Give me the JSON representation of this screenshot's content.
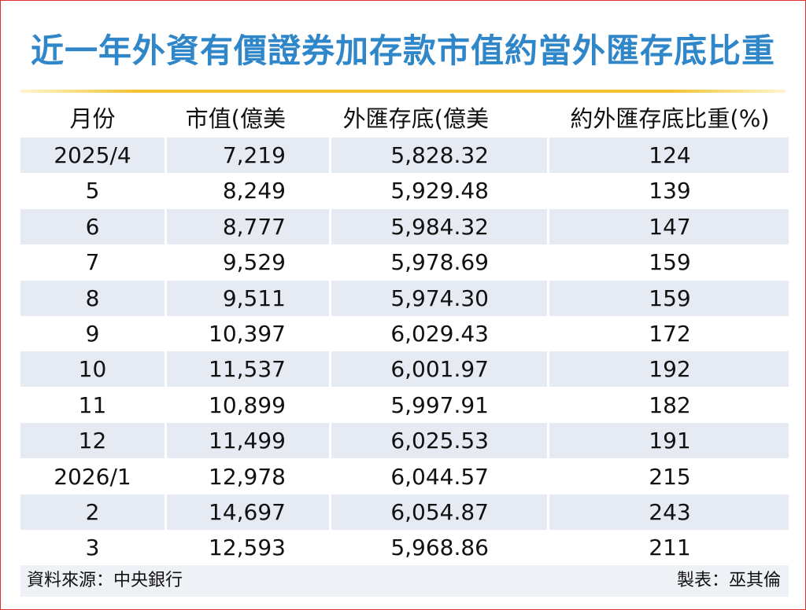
{
  "title": "近一年外資有價證券加存款市值約當外匯存底比重",
  "table": {
    "header": [
      "月份",
      "市值(億美元)",
      "外匯存底(億美元)",
      "約外匯存底比重(%)"
    ],
    "rows": [
      [
        "2025/4",
        "7,219",
        "5,828.32",
        "124"
      ],
      [
        "5",
        "8,249",
        "5,929.48",
        "139"
      ],
      [
        "6",
        "8,777",
        "5,984.32",
        "147"
      ],
      [
        "7",
        "9,529",
        "5,978.69",
        "159"
      ],
      [
        "8",
        "9,511",
        "5,974.30",
        "159"
      ],
      [
        "9",
        "10,397",
        "6,029.43",
        "172"
      ],
      [
        "10",
        "11,537",
        "6,001.97",
        "192"
      ],
      [
        "11",
        "10,899",
        "5,997.91",
        "182"
      ],
      [
        "12",
        "11,499",
        "6,025.53",
        "191"
      ],
      [
        "2026/1",
        "12,978",
        "6,044.57",
        "215"
      ],
      [
        "2",
        "14,697",
        "6,054.87",
        "243"
      ],
      [
        "3",
        "12,593",
        "5,968.86",
        "211"
      ]
    ]
  },
  "footer": {
    "source": "資料來源：中央銀行",
    "maker": "製表：巫其倫"
  }
}
